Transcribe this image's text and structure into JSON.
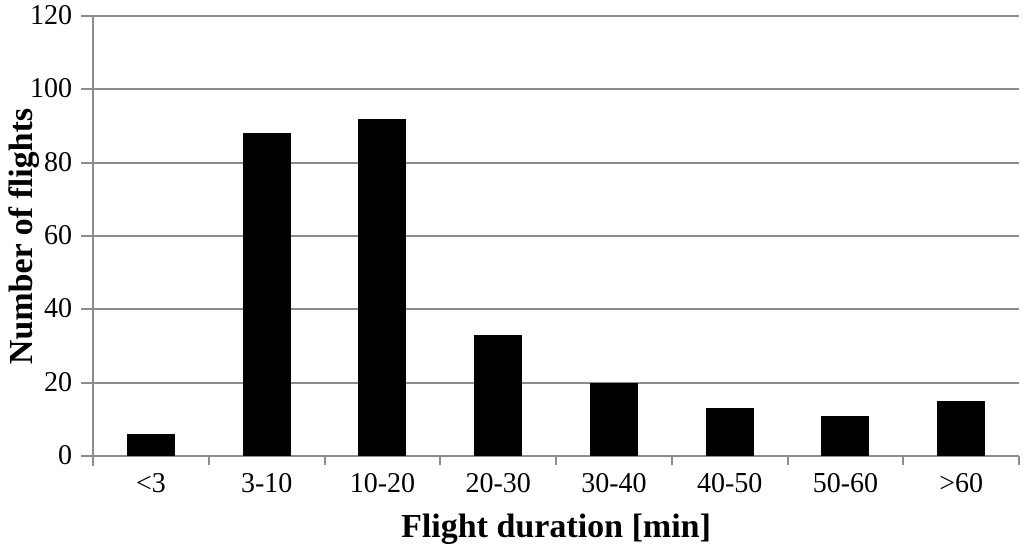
{
  "chart_data": {
    "type": "bar",
    "categories": [
      "<3",
      "3-10",
      "10-20",
      "20-30",
      "30-40",
      "40-50",
      "50-60",
      ">60"
    ],
    "values": [
      6,
      88,
      92,
      33,
      20,
      13,
      11,
      15
    ],
    "title": "",
    "xlabel": "Flight duration [min]",
    "ylabel": "Number of flights",
    "ylim": [
      0,
      120
    ],
    "yticks": [
      0,
      20,
      40,
      60,
      80,
      100,
      120
    ],
    "grid": true,
    "legend": "none",
    "bar_color": "#000000",
    "grid_color": "#8c8c8c",
    "axis_color": "#8c8c8c",
    "text_color": "#000000"
  }
}
